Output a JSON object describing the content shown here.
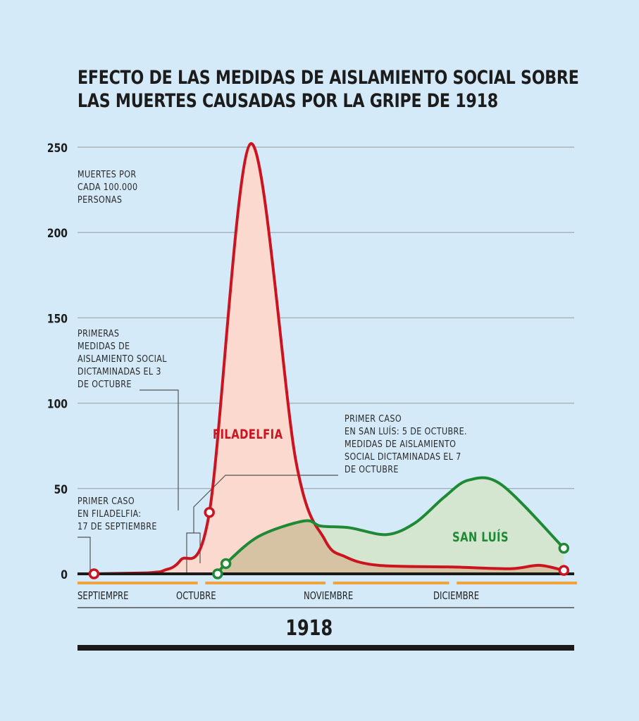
{
  "chart_data": {
    "type": "area",
    "title": "EFECTO DE LAS MEDIDAS DE AISLAMIENTO SOCIAL SOBRE LAS MUERTES CAUSADAS POR LA GRIPE DE 1918",
    "title_lines": [
      "EFECTO DE LAS MEDIDAS DE AISLAMIENTO SOCIAL SOBRE",
      "LAS MUERTES CAUSADAS POR LA GRIPE DE 1918"
    ],
    "ylabel_lines": [
      "MUERTES POR",
      "CADA 100.000",
      "PERSONAS"
    ],
    "xlabel": "1918",
    "ylim": [
      0,
      250
    ],
    "yticks": [
      0,
      50,
      100,
      150,
      200,
      250
    ],
    "grid": true,
    "x_unit": "day (1 = 1 de septiembre 1918)",
    "xlim": [
      1,
      122
    ],
    "months": [
      {
        "label": "SEPTIEMPRE",
        "start": 1,
        "end": 30
      },
      {
        "label": "OCTUBRE",
        "start": 32,
        "end": 61
      },
      {
        "label": "NOVIEMBRE",
        "start": 63,
        "end": 91
      },
      {
        "label": "DICIEMBRE",
        "start": 93,
        "end": 122
      }
    ],
    "series": [
      {
        "name": "FILADELFIA",
        "color": "#cc1420",
        "fill": "#fbd9cf",
        "x": [
          5,
          17,
          20,
          22,
          26,
          33,
          43,
          54,
          61,
          66,
          74,
          92,
          106,
          113,
          119
        ],
        "values": [
          0,
          0.5,
          1,
          2,
          8,
          36,
          252,
          66,
          20,
          10,
          5,
          4,
          3,
          5,
          2
        ]
      },
      {
        "name": "SAN LUÍS",
        "color": "#1f8a35",
        "fill": "#d5e6d0",
        "x": [
          35,
          37,
          45,
          56,
          60,
          67,
          76,
          83,
          90,
          96,
          104,
          119
        ],
        "values": [
          0,
          6,
          22,
          31,
          28,
          27,
          23,
          30,
          45,
          55,
          52,
          15
        ]
      }
    ],
    "markers": [
      {
        "series": "FILADELFIA",
        "x": 5,
        "value": 0
      },
      {
        "series": "FILADELFIA",
        "x": 33,
        "value": 36
      },
      {
        "series": "FILADELFIA",
        "x": 119,
        "value": 2
      },
      {
        "series": "SAN LUÍS",
        "x": 35,
        "value": 0
      },
      {
        "series": "SAN LUÍS",
        "x": 37,
        "value": 6
      },
      {
        "series": "SAN LUÍS",
        "x": 119,
        "value": 15
      }
    ],
    "annotations": [
      {
        "id": "first-case-philadelphia",
        "lines": [
          "PRIMER CASO",
          "EN FILADELFIA:",
          "17 DE SEPTIEMBRE"
        ]
      },
      {
        "id": "philadelphia-measures",
        "lines": [
          "PRIMERAS",
          "MEDIDAS DE",
          "AISLAMIENTO SOCIAL",
          "DICTAMINADAS EL 3",
          "DE OCTUBRE"
        ]
      },
      {
        "id": "saint-louis-case-measures",
        "lines": [
          "PRIMER CASO",
          "EN SAN LUÍS: 5 DE OCTUBRE.",
          "MEDIDAS DE AISLAMIENTO",
          "SOCIAL DICTAMINADAS EL 7",
          "DE OCTUBRE"
        ]
      }
    ],
    "colors": {
      "background": "#d4eaf8",
      "grid": "#a8b3bc",
      "baseline": "#1a1a1a",
      "month_bar": "#f0a33c",
      "overlap_fill": "#d6c3a4"
    }
  }
}
